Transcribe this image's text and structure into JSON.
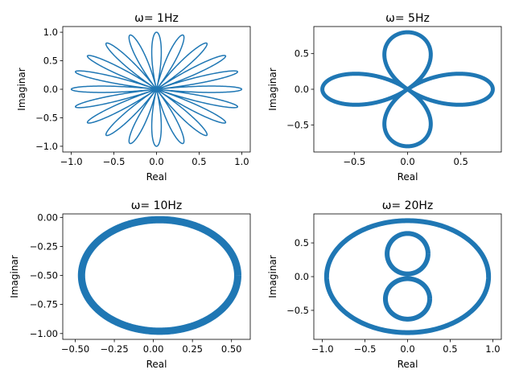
{
  "chart_data": [
    {
      "type": "line",
      "title": "ω= 1Hz",
      "xlabel": "Real",
      "ylabel": "Imaginar",
      "xlim": [
        -1.1,
        1.1
      ],
      "ylim": [
        -1.1,
        1.1
      ],
      "xticks": [
        -1.0,
        -0.5,
        0.0,
        0.5,
        1.0
      ],
      "yticks": [
        -1.0,
        -0.5,
        0.0,
        0.5,
        1.0
      ],
      "xtick_labels": [
        "−1.0",
        "−0.5",
        "0.0",
        "0.5",
        "1.0"
      ],
      "ytick_labels": [
        "−1.0",
        "−0.5",
        "0.0",
        "0.5",
        "1.0"
      ],
      "curve": {
        "kind": "rose",
        "petals": 20,
        "amplitude": 1.0
      },
      "color": "#1f77b4"
    },
    {
      "type": "line",
      "title": "ω= 5Hz",
      "xlabel": "Real",
      "ylabel": "Imaginar",
      "xlim": [
        -0.88,
        0.88
      ],
      "ylim": [
        -0.88,
        0.88
      ],
      "xticks": [
        -0.5,
        0.0,
        0.5
      ],
      "yticks": [
        -0.5,
        0.0,
        0.5
      ],
      "xtick_labels": [
        "−0.5",
        "0.0",
        "0.5"
      ],
      "ytick_labels": [
        "−0.5",
        "0.0",
        "0.5"
      ],
      "curve": {
        "kind": "rose",
        "petals": 4,
        "amplitude": 0.8
      },
      "color": "#1f77b4"
    },
    {
      "type": "line",
      "title": "ω= 10Hz",
      "xlabel": "Real",
      "ylabel": "Imaginar",
      "xlim": [
        -0.58,
        0.62
      ],
      "ylim": [
        -1.05,
        0.03
      ],
      "xticks": [
        -0.5,
        -0.25,
        0.0,
        0.25,
        0.5
      ],
      "yticks": [
        0.0,
        -0.25,
        -0.5,
        -0.75,
        -1.0
      ],
      "xtick_labels": [
        "−0.50",
        "−0.25",
        "0.00",
        "0.25",
        "0.50"
      ],
      "ytick_labels": [
        "0.00",
        "−0.25",
        "−0.50",
        "−0.75",
        "−1.00"
      ],
      "curve": {
        "kind": "ellipse",
        "center": [
          0.04,
          -0.5
        ],
        "rx": 0.5,
        "ry": 0.48
      },
      "color": "#1f77b4"
    },
    {
      "type": "line",
      "title": "ω= 20Hz",
      "xlabel": "Real",
      "ylabel": "Imaginar",
      "xlim": [
        -1.1,
        1.1
      ],
      "ylim": [
        -0.93,
        0.93
      ],
      "xticks": [
        -1.0,
        -0.5,
        0.0,
        0.5,
        1.0
      ],
      "yticks": [
        -0.5,
        0.0,
        0.5
      ],
      "xtick_labels": [
        "−1.0",
        "−0.5",
        "0.0",
        "0.5",
        "1.0"
      ],
      "ytick_labels": [
        "−0.5",
        "0.0",
        "0.5"
      ],
      "curve": {
        "kind": "circle_with_figure_eight",
        "radius": 0.95
      },
      "color": "#1f77b4"
    }
  ]
}
